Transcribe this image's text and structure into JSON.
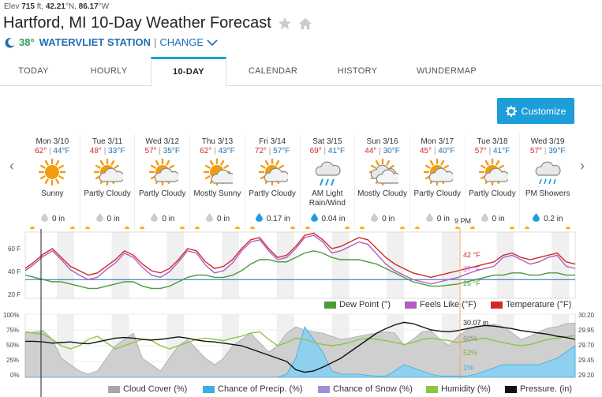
{
  "header": {
    "elevation_prefix": "Elev",
    "elevation_value": "715",
    "elevation_rest": "ft,",
    "lat": "42.21",
    "lat_suffix": "°N,",
    "lon": "86.17",
    "lon_suffix": "°W",
    "title": "Hartford, MI 10-Day Weather Forecast",
    "current_temp": "38°",
    "station": "WATERVLIET STATION",
    "separator": "|",
    "change_label": "CHANGE"
  },
  "tabs": [
    {
      "label": "TODAY"
    },
    {
      "label": "HOURLY"
    },
    {
      "label": "10-DAY"
    },
    {
      "label": "CALENDAR"
    },
    {
      "label": "HISTORY"
    },
    {
      "label": "WUNDERMAP"
    }
  ],
  "customize_label": "Customize",
  "colors": {
    "accent": "#1d9ed8",
    "hi_temp": "#d0292b",
    "lo_temp": "#1f6fb2",
    "temperature": "#d0292b",
    "feels_like": "#b05ec2",
    "dew_point": "#4a9a3a",
    "cloud_cover": "#a6a6a6",
    "precip": "#3aaee0",
    "snow": "#a38ed6",
    "humidity": "#8dc63f",
    "pressure": "#111111"
  },
  "days": [
    {
      "date": "Mon 3/10",
      "hi": "62°",
      "lo": "44°F",
      "icon": "sunny-icon",
      "cond": "Sunny",
      "precip": "0 in",
      "drop": "dry"
    },
    {
      "date": "Tue 3/11",
      "hi": "48°",
      "lo": "33°F",
      "icon": "partly-cloudy-icon",
      "cond": "Partly Cloudy",
      "precip": "0 in",
      "drop": "dry"
    },
    {
      "date": "Wed 3/12",
      "hi": "57°",
      "lo": "35°F",
      "icon": "partly-cloudy-icon",
      "cond": "Partly Cloudy",
      "precip": "0 in",
      "drop": "dry"
    },
    {
      "date": "Thu 3/13",
      "hi": "62°",
      "lo": "43°F",
      "icon": "mostly-sunny-icon",
      "cond": "Mostly Sunny",
      "precip": "0 in",
      "drop": "dry"
    },
    {
      "date": "Fri 3/14",
      "hi": "72°",
      "lo": "57°F",
      "icon": "partly-cloudy-icon",
      "cond": "Partly Cloudy",
      "precip": "0.17 in",
      "drop": "wet"
    },
    {
      "date": "Sat 3/15",
      "hi": "69°",
      "lo": "41°F",
      "icon": "rain-icon",
      "cond": "AM Light Rain/Wind",
      "precip": "0.04 in",
      "drop": "wet"
    },
    {
      "date": "Sun 3/16",
      "hi": "44°",
      "lo": "30°F",
      "icon": "mostly-cloudy-icon",
      "cond": "Mostly Cloudy",
      "precip": "0 in",
      "drop": "dry"
    },
    {
      "date": "Mon 3/17",
      "hi": "45°",
      "lo": "40°F",
      "icon": "partly-cloudy-icon",
      "cond": "Partly Cloudy",
      "precip": "0 in",
      "drop": "dry"
    },
    {
      "date": "Tue 3/18",
      "hi": "57°",
      "lo": "41°F",
      "icon": "partly-cloudy-icon",
      "cond": "Partly Cloudy",
      "precip": "0 in",
      "drop": "dry"
    },
    {
      "date": "Wed 3/19",
      "hi": "57°",
      "lo": "39°F",
      "icon": "showers-icon",
      "cond": "PM Showers",
      "precip": "0.2 in",
      "drop": "wet"
    }
  ],
  "chart_top": {
    "type": "line",
    "y_ticks": [
      "60 F",
      "40 F",
      "20 F"
    ],
    "ylim": [
      15,
      75
    ],
    "cursor_label": "9 PM",
    "readouts": {
      "temperature": "42 °F",
      "feels_like": "37 °F",
      "dew_point": "26 °F"
    },
    "legend": [
      "Dew Point (°)",
      "Feels Like (°F)",
      "Temperature (°F)"
    ],
    "freezing_line": 32
  },
  "chart_bottom": {
    "type": "area",
    "y_ticks_left": [
      "100%",
      "75%",
      "50%",
      "25%",
      "0%"
    ],
    "y_ticks_right": [
      "30.20",
      "29.95",
      "29.70",
      "29.45",
      "29.20"
    ],
    "readouts": {
      "pressure": "30.07 in",
      "cloud": "60%",
      "humidity": "52%",
      "precip": "1%"
    },
    "legend": [
      "Cloud Cover (%)",
      "Chance of Precip. (%)",
      "Chance of Snow (%)",
      "Humidity (%)",
      "Pressure. (in)"
    ]
  },
  "chart_data": [
    {
      "type": "line",
      "ylim": [
        15,
        75
      ],
      "series": [
        {
          "name": "Temperature (°F)",
          "values": [
            42,
            48,
            55,
            60,
            52,
            44,
            40,
            36,
            38,
            44,
            50,
            58,
            54,
            46,
            40,
            38,
            42,
            50,
            60,
            58,
            48,
            42,
            44,
            50,
            60,
            68,
            70,
            60,
            52,
            54,
            62,
            72,
            74,
            68,
            60,
            62,
            66,
            70,
            68,
            60,
            52,
            46,
            42,
            38,
            36,
            34,
            36,
            38,
            40,
            42,
            44,
            46,
            48,
            54,
            56,
            52,
            50,
            52,
            54,
            56,
            48,
            46
          ]
        },
        {
          "name": "Feels Like (°F)",
          "values": [
            40,
            46,
            53,
            58,
            50,
            41,
            36,
            32,
            34,
            41,
            47,
            56,
            52,
            43,
            36,
            34,
            39,
            48,
            58,
            56,
            45,
            38,
            40,
            47,
            58,
            66,
            68,
            58,
            50,
            52,
            60,
            70,
            72,
            66,
            56,
            58,
            62,
            66,
            64,
            55,
            46,
            40,
            36,
            32,
            30,
            28,
            30,
            32,
            34,
            37,
            40,
            42,
            44,
            52,
            54,
            50,
            46,
            48,
            52,
            54,
            44,
            42
          ]
        },
        {
          "name": "Dew Point (°)",
          "values": [
            36,
            34,
            32,
            30,
            30,
            28,
            26,
            24,
            24,
            26,
            28,
            30,
            30,
            26,
            24,
            24,
            26,
            30,
            34,
            36,
            36,
            34,
            34,
            36,
            40,
            46,
            50,
            50,
            48,
            48,
            52,
            56,
            58,
            56,
            52,
            50,
            50,
            50,
            48,
            46,
            42,
            38,
            34,
            30,
            28,
            26,
            26,
            27,
            28,
            30,
            32,
            34,
            36,
            36,
            38,
            38,
            36,
            36,
            38,
            38,
            36,
            36
          ]
        }
      ]
    },
    {
      "type": "area",
      "ylim": [
        0,
        100
      ],
      "series": [
        {
          "name": "Cloud Cover (%)",
          "values": [
            70,
            72,
            74,
            60,
            30,
            20,
            10,
            5,
            10,
            30,
            50,
            60,
            70,
            30,
            20,
            10,
            30,
            50,
            60,
            45,
            30,
            20,
            30,
            50,
            60,
            70,
            55,
            40,
            50,
            70,
            80,
            75,
            72,
            70,
            65,
            60,
            62,
            65,
            68,
            70,
            72,
            70,
            50,
            60,
            72,
            74,
            60,
            50,
            65,
            75,
            80,
            82,
            84,
            80,
            70,
            60,
            65,
            72,
            78,
            80,
            85,
            86
          ]
        },
        {
          "name": "Chance of Precip. (%)",
          "values": [
            0,
            0,
            0,
            0,
            0,
            0,
            0,
            0,
            0,
            0,
            0,
            0,
            0,
            0,
            0,
            0,
            0,
            0,
            0,
            0,
            0,
            0,
            0,
            0,
            0,
            0,
            0,
            0,
            0,
            5,
            30,
            80,
            60,
            40,
            10,
            5,
            5,
            5,
            3,
            2,
            2,
            10,
            20,
            15,
            10,
            5,
            2,
            2,
            2,
            2,
            5,
            10,
            15,
            20,
            20,
            20,
            20,
            20,
            25,
            30,
            40,
            50
          ]
        },
        {
          "name": "Humidity (%)",
          "values": [
            72,
            70,
            68,
            60,
            50,
            45,
            50,
            60,
            65,
            55,
            45,
            50,
            55,
            60,
            58,
            50,
            45,
            50,
            55,
            60,
            62,
            60,
            58,
            62,
            65,
            70,
            72,
            60,
            50,
            55,
            62,
            60,
            55,
            52,
            50,
            52,
            55,
            60,
            62,
            60,
            58,
            55,
            52,
            55,
            60,
            62,
            60,
            58,
            55,
            57,
            60,
            62,
            58,
            55,
            52,
            50,
            52,
            56,
            60,
            62,
            64,
            66
          ]
        },
        {
          "name": "Pressure. (in)",
          "values": [
            29.77,
            29.77,
            29.76,
            29.74,
            29.75,
            29.76,
            29.74,
            29.73,
            29.76,
            29.79,
            29.82,
            29.83,
            29.82,
            29.8,
            29.79,
            29.8,
            29.82,
            29.84,
            29.82,
            29.79,
            29.77,
            29.76,
            29.74,
            29.72,
            29.7,
            29.65,
            29.6,
            29.55,
            29.5,
            29.45,
            29.32,
            29.28,
            29.3,
            29.36,
            29.43,
            29.5,
            29.6,
            29.7,
            29.8,
            29.9,
            29.97,
            30.03,
            30.07,
            30.05,
            30.0,
            29.95,
            29.93,
            29.92,
            29.94,
            29.97,
            30.0,
            30.02,
            30.01,
            29.99,
            29.97,
            29.94,
            29.92,
            29.9,
            29.88,
            29.85,
            29.83,
            29.8
          ]
        }
      ]
    }
  ]
}
